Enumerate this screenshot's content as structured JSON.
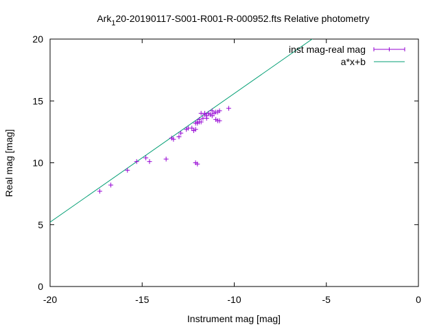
{
  "chart_data": {
    "type": "scatter",
    "title": "Ark",
    "title_subscript": "1",
    "title_suffix": "20-20190117-S001-R001-R-000952.fts Relative photometry",
    "xlabel": "Instrument mag [mag]",
    "ylabel": "Real mag [mag]",
    "xlim": [
      -20,
      0
    ],
    "ylim": [
      0,
      20
    ],
    "xticks": [
      -20,
      -15,
      -10,
      -5,
      0
    ],
    "yticks": [
      0,
      5,
      10,
      15,
      20
    ],
    "grid": false,
    "legend_position": "top-right",
    "series": [
      {
        "name": "inst mag-real mag",
        "kind": "points-with-errorbars",
        "color": "#9400d3",
        "points": [
          [
            -17.3,
            7.7
          ],
          [
            -16.7,
            8.2
          ],
          [
            -15.8,
            9.4
          ],
          [
            -15.3,
            10.1
          ],
          [
            -14.8,
            10.4
          ],
          [
            -14.6,
            10.1
          ],
          [
            -13.7,
            10.3
          ],
          [
            -13.4,
            12.0
          ],
          [
            -13.3,
            11.9
          ],
          [
            -13.0,
            12.1
          ],
          [
            -12.9,
            12.4
          ],
          [
            -12.6,
            12.7
          ],
          [
            -12.5,
            12.8
          ],
          [
            -12.3,
            12.8
          ],
          [
            -12.2,
            12.6
          ],
          [
            -12.1,
            12.7
          ],
          [
            -12.1,
            13.2
          ],
          [
            -12.0,
            13.3
          ],
          [
            -12.0,
            13.2
          ],
          [
            -11.9,
            13.5
          ],
          [
            -11.9,
            13.3
          ],
          [
            -11.8,
            14.0
          ],
          [
            -11.8,
            13.3
          ],
          [
            -11.7,
            13.6
          ],
          [
            -11.6,
            13.9
          ],
          [
            -11.6,
            14.0
          ],
          [
            -11.5,
            13.8
          ],
          [
            -11.5,
            13.6
          ],
          [
            -11.4,
            14.0
          ],
          [
            -11.3,
            13.9
          ],
          [
            -11.2,
            13.8
          ],
          [
            -11.2,
            14.2
          ],
          [
            -11.1,
            14.0
          ],
          [
            -11.0,
            14.1
          ],
          [
            -11.0,
            13.5
          ],
          [
            -10.9,
            13.4
          ],
          [
            -10.9,
            14.1
          ],
          [
            -10.8,
            14.2
          ],
          [
            -10.8,
            13.4
          ],
          [
            -10.3,
            14.4
          ],
          [
            -12.1,
            10.0
          ],
          [
            -12.0,
            9.9
          ]
        ]
      },
      {
        "name": "a*x+b",
        "kind": "line",
        "color": "#009e73",
        "slope": 1.04,
        "intercept": 26.0
      }
    ]
  }
}
